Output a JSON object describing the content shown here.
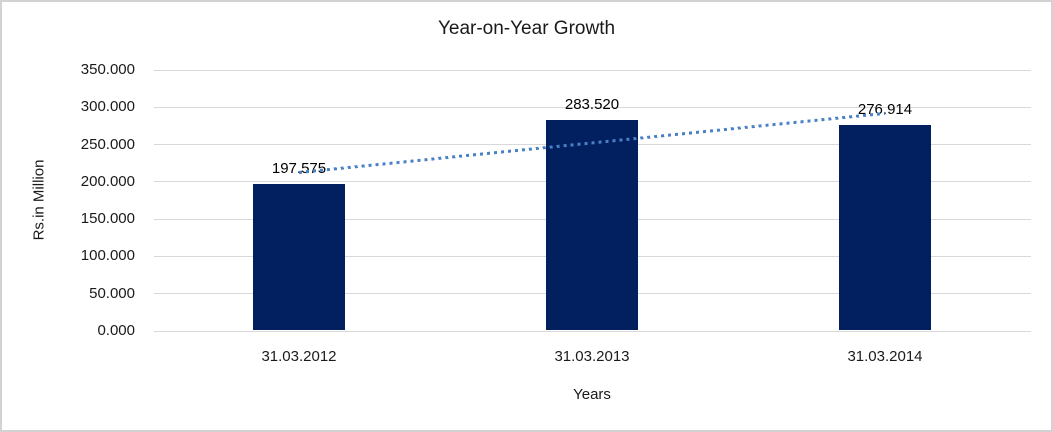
{
  "frame": {
    "background_color": "#ffffff",
    "border_color": "#d2d2d2"
  },
  "chart_data": {
    "type": "bar",
    "title": "Year-on-Year Growth",
    "xlabel": "Years",
    "ylabel": "Rs.in Million",
    "categories": [
      "31.03.2012",
      "31.03.2013",
      "31.03.2014"
    ],
    "values": [
      197.575,
      283.52,
      276.914
    ],
    "value_labels": [
      "197.575",
      "283.520",
      "276.914"
    ],
    "ylim": [
      0,
      350
    ],
    "ytick_step": 50,
    "ytick_labels": [
      "0.000",
      "50.000",
      "100.000",
      "150.000",
      "200.000",
      "250.000",
      "300.000",
      "350.000"
    ],
    "grid": "horizontal-only",
    "legend": "none",
    "bar_color": "#02205f",
    "gridline_color": "#d9d9d9",
    "trendline": {
      "type": "linear",
      "style": "dotted",
      "color": "#4a80c4"
    }
  }
}
